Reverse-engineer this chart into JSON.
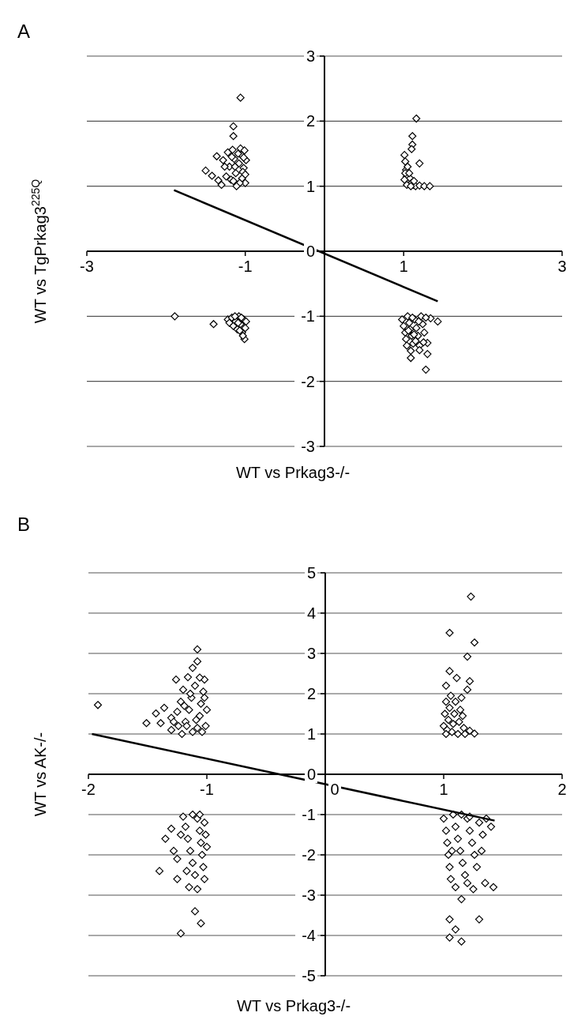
{
  "chart_data": [
    {
      "type": "scatter",
      "title": "A",
      "xlabel": "WT vs Prkag3-/-",
      "ylabel": "WT vs TgPrkag3$^{225Q}$",
      "xlim": [
        -3,
        3
      ],
      "ylim": [
        -3,
        3
      ],
      "xticks": [
        -3,
        -1,
        1,
        3
      ],
      "yticks": [
        -3,
        -2,
        -1,
        0,
        1,
        2,
        3
      ],
      "grid": "y",
      "marker": "diamond",
      "series": [
        {
          "color": "#000000",
          "x": [
            -1.06,
            -1.15,
            -1.15,
            -1.5,
            -1.42,
            -1.36,
            -1.34,
            -1.3,
            -1.28,
            -1.22,
            -1.2,
            -1.18,
            -1.16,
            -1.14,
            -1.12,
            -1.1,
            -1.08,
            -1.06,
            -1.05,
            -1.04,
            -1.02,
            -1.0,
            -0.99,
            -1.01,
            -1.03,
            -1.07,
            -1.09,
            -1.13,
            -1.17,
            -1.24,
            -1.26,
            -1.0,
            -1.02,
            -1.11,
            -1.15,
            1.16,
            1.11,
            1.11,
            1.1,
            1.2,
            1.01,
            1.02,
            1.03,
            1.04,
            1.08,
            1.1,
            1.12,
            1.15,
            1.2,
            1.26,
            1.33,
            1.02,
            1.05,
            1.07,
            1.01,
            1.04,
            1.13,
            1.09,
            1.43,
            1.3,
            1.3,
            1.09,
            1.09,
            1.28,
            1.34,
            0.98,
            1.0,
            1.02,
            1.03,
            1.05,
            1.07,
            1.08,
            1.1,
            1.12,
            1.14,
            1.16,
            1.18,
            1.2,
            1.22,
            1.24,
            1.26,
            1.15,
            1.2,
            1.25,
            1.04,
            1.11,
            1.19,
            1.28,
            1.06,
            1.13,
            -1.89,
            -1.4,
            -1.22,
            -1.2,
            -1.17,
            -1.15,
            -1.12,
            -1.1,
            -1.08,
            -1.06,
            -1.04,
            -1.02,
            -1.0,
            -1.01,
            -1.03,
            -1.05,
            -1.09,
            -1.13,
            -0.99,
            -1.07
          ],
          "values": [
            2.36,
            1.92,
            1.77,
            1.24,
            1.16,
            1.46,
            1.09,
            1.02,
            1.4,
            1.52,
            1.3,
            1.1,
            1.56,
            1.42,
            1.2,
            1.02,
            1.35,
            1.58,
            1.48,
            1.12,
            1.28,
            1.05,
            1.4,
            1.55,
            1.22,
            1.05,
            1.5,
            1.3,
            1.45,
            1.15,
            1.3,
            1.18,
            1.44,
            1.0,
            1.08,
            2.04,
            1.77,
            1.64,
            1.57,
            1.35,
            1.48,
            1.38,
            1.25,
            1.15,
            1.12,
            1.05,
            1.02,
            1.0,
            1.01,
            1.0,
            1.0,
            1.2,
            1.3,
            1.2,
            1.1,
            1.02,
            1.08,
            1.0,
            -1.08,
            -1.41,
            -1.58,
            -1.64,
            -1.53,
            -1.82,
            -1.03,
            -1.05,
            -1.15,
            -1.25,
            -1.35,
            -1.0,
            -1.1,
            -1.2,
            -1.3,
            -1.42,
            -1.05,
            -1.18,
            -1.3,
            -1.45,
            -1.0,
            -1.12,
            -1.25,
            -1.38,
            -1.52,
            -1.4,
            -1.45,
            -1.02,
            -1.08,
            -1.02,
            -1.22,
            -1.28,
            -1.0,
            -1.12,
            -1.05,
            -1.1,
            -1.02,
            -1.15,
            -1.08,
            -1.2,
            -1.0,
            -1.12,
            -1.25,
            -1.05,
            -1.18,
            -1.35,
            -1.3,
            -1.02,
            -1.1,
            -1.0,
            -1.08,
            -1.22
          ]
        },
        {
          "type": "line",
          "marker": "none",
          "color": "#000000",
          "x": [
            -1.9,
            1.43
          ],
          "values": [
            0.94,
            -0.77
          ]
        }
      ]
    },
    {
      "type": "scatter",
      "title": "B",
      "xlabel": "WT vs Prkag3-/-",
      "ylabel": "WT vs AK-/-",
      "xlim": [
        -2,
        2
      ],
      "ylim": [
        -5,
        5
      ],
      "xticks": [
        -2,
        -1,
        0,
        1,
        2
      ],
      "yticks": [
        -5,
        -4,
        -3,
        -2,
        -1,
        0,
        1,
        2,
        3,
        4,
        5
      ],
      "grid": "y",
      "marker": "diamond",
      "series": [
        {
          "color": "#000000",
          "x": [
            -1.92,
            -1.08,
            -1.08,
            -1.12,
            -1.26,
            -1.16,
            -1.36,
            -1.43,
            -1.51,
            -1.39,
            -1.3,
            -1.21,
            -1.3,
            -1.25,
            -1.22,
            -1.2,
            -1.18,
            -1.15,
            -1.13,
            -1.1,
            -1.08,
            -1.06,
            -1.05,
            -1.03,
            -1.02,
            -1.01,
            -1.0,
            -1.04,
            -1.12,
            -1.17,
            -1.24,
            -1.09,
            -1.14,
            -1.02,
            -1.06,
            -1.19,
            -1.28,
            1.23,
            1.05,
            1.26,
            1.2,
            1.05,
            1.11,
            1.22,
            1.2,
            1.02,
            1.26,
            1.22,
            1.0,
            1.01,
            1.02,
            1.03,
            1.04,
            1.05,
            1.06,
            1.07,
            1.08,
            1.09,
            1.1,
            1.12,
            1.13,
            1.14,
            1.15,
            1.17,
            1.18,
            1.02,
            1.16,
            -1.22,
            -1.05,
            -1.1,
            -1.25,
            -1.15,
            -1.08,
            -1.3,
            -1.35,
            -1.28,
            -1.2,
            -1.18,
            -1.16,
            -1.14,
            -1.12,
            -1.1,
            -1.08,
            -1.06,
            -1.05,
            -1.04,
            -1.03,
            -1.02,
            -1.01,
            -1.0,
            -1.12,
            -1.22,
            -1.25,
            -1.02,
            -1.17,
            -1.06,
            -1.4,
            1.05,
            1.1,
            1.05,
            1.15,
            1.3,
            1.15,
            1.42,
            1.35,
            1.0,
            1.02,
            1.03,
            1.04,
            1.05,
            1.06,
            1.08,
            1.1,
            1.12,
            1.14,
            1.16,
            1.18,
            1.2,
            1.22,
            1.24,
            1.26,
            1.28,
            1.3,
            1.33,
            1.36,
            1.4,
            1.25,
            1.1,
            1.2,
            1.32,
            1.15,
            1.07,
            1.22
          ],
          "values": [
            1.72,
            3.1,
            2.8,
            2.64,
            2.35,
            2.41,
            1.65,
            1.51,
            1.27,
            1.27,
            1.1,
            1.0,
            1.4,
            1.55,
            1.8,
            2.1,
            1.3,
            1.6,
            1.9,
            2.2,
            1.15,
            1.45,
            1.75,
            2.05,
            2.35,
            1.2,
            1.6,
            1.05,
            1.05,
            1.2,
            1.2,
            1.35,
            2.0,
            1.9,
            2.4,
            1.7,
            1.3,
            4.41,
            3.51,
            3.27,
            2.92,
            2.56,
            2.39,
            2.31,
            2.1,
            2.2,
            1.01,
            1.08,
            1.2,
            1.5,
            1.8,
            1.1,
            1.35,
            1.65,
            1.95,
            1.05,
            1.25,
            1.5,
            1.8,
            1.0,
            1.3,
            1.6,
            1.9,
            1.15,
            1.0,
            1.0,
            1.45,
            -3.95,
            -3.7,
            -3.4,
            -2.6,
            -2.8,
            -2.85,
            -1.35,
            -1.6,
            -1.9,
            -1.05,
            -1.3,
            -1.6,
            -1.9,
            -2.2,
            -2.5,
            -1.1,
            -1.4,
            -1.7,
            -2.0,
            -2.3,
            -1.2,
            -1.5,
            -1.8,
            -1.0,
            -1.5,
            -2.1,
            -2.6,
            -2.4,
            -1.0,
            -2.4,
            -3.6,
            -3.85,
            -4.05,
            -4.15,
            -3.6,
            -3.1,
            -2.8,
            -2.7,
            -1.1,
            -1.4,
            -1.7,
            -2.0,
            -2.3,
            -2.6,
            -1.0,
            -1.3,
            -1.6,
            -1.9,
            -2.2,
            -2.5,
            -1.1,
            -1.4,
            -1.7,
            -2.0,
            -2.3,
            -1.2,
            -1.5,
            -1.1,
            -1.3,
            -2.85,
            -2.8,
            -2.7,
            -1.9,
            -1.0,
            -1.9,
            -1.05
          ]
        },
        {
          "type": "line",
          "marker": "none",
          "color": "#000000",
          "x": [
            -1.97,
            1.43
          ],
          "values": [
            1.0,
            -1.15
          ]
        }
      ]
    }
  ]
}
